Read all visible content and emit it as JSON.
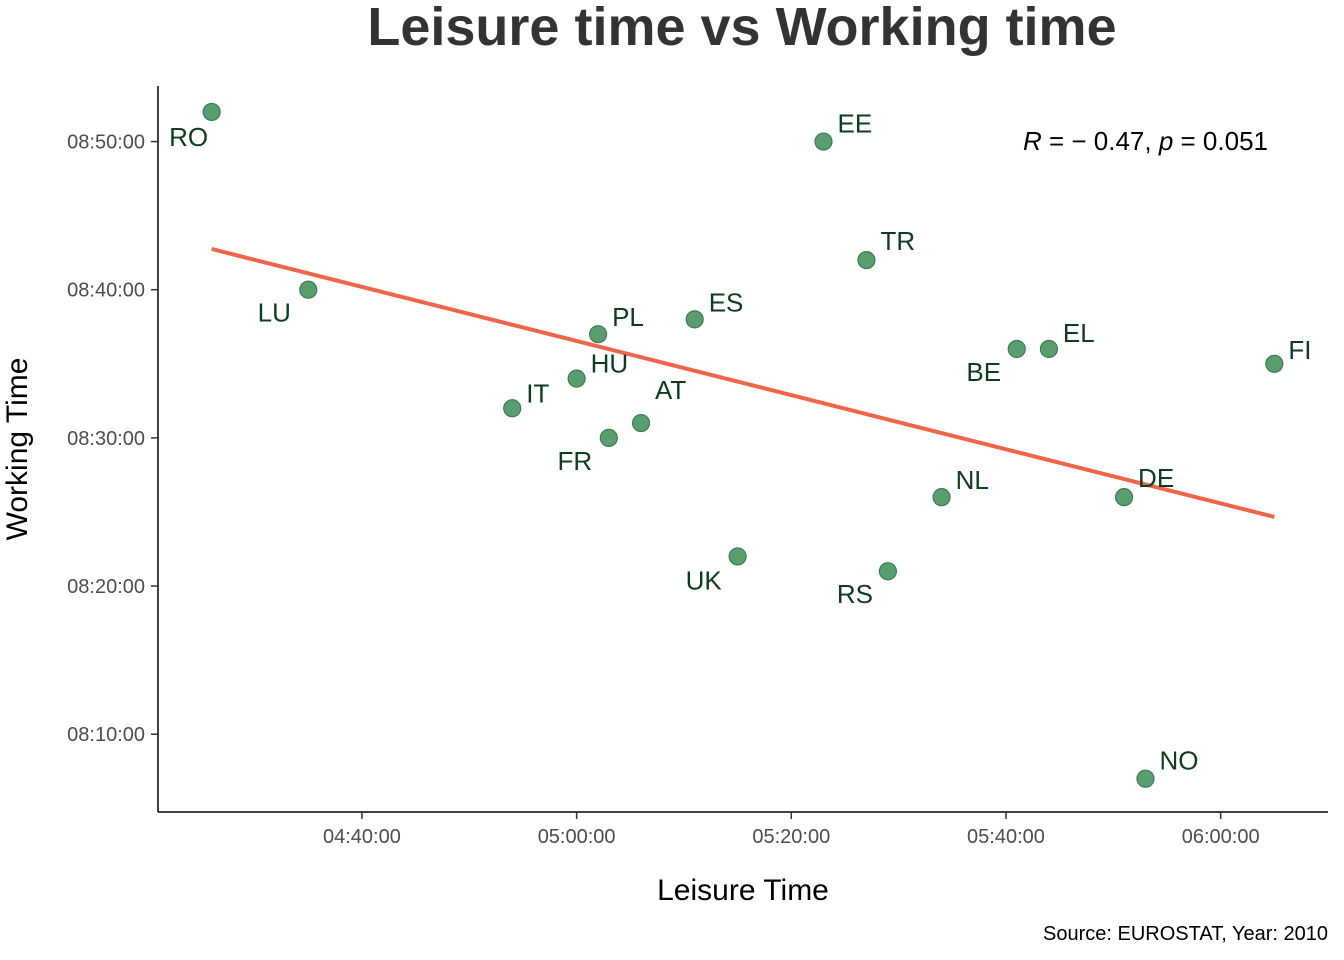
{
  "chart_data": {
    "type": "scatter",
    "title": "Leisure time vs Working time",
    "xlabel": "Leisure Time",
    "ylabel": "Working Time",
    "caption": "Source: EUROSTAT, Year: 2010",
    "annotation": {
      "r_symbol": "R",
      "r_value": " = − 0.47, ",
      "p_symbol": "p",
      "p_value": " = 0.051"
    },
    "x_ticks": [
      "04:40:00",
      "05:00:00",
      "05:20:00",
      "05:40:00",
      "06:00:00"
    ],
    "y_ticks": [
      "08:10:00",
      "08:20:00",
      "08:30:00",
      "08:40:00",
      "08:50:00"
    ],
    "xlim": [
      "04:21:00",
      "06:10:00"
    ],
    "ylim": [
      "08:04:45",
      "08:53:45"
    ],
    "points": [
      {
        "label": "RO",
        "x": "04:26:00",
        "y": "08:52:00"
      },
      {
        "label": "LU",
        "x": "04:35:00",
        "y": "08:40:00"
      },
      {
        "label": "IT",
        "x": "04:54:00",
        "y": "08:32:00"
      },
      {
        "label": "HU",
        "x": "05:00:00",
        "y": "08:34:00"
      },
      {
        "label": "PL",
        "x": "05:02:00",
        "y": "08:37:00"
      },
      {
        "label": "FR",
        "x": "05:03:00",
        "y": "08:30:00"
      },
      {
        "label": "AT",
        "x": "05:06:00",
        "y": "08:31:00"
      },
      {
        "label": "ES",
        "x": "05:11:00",
        "y": "08:38:00"
      },
      {
        "label": "UK",
        "x": "05:15:00",
        "y": "08:22:00"
      },
      {
        "label": "EE",
        "x": "05:23:00",
        "y": "08:50:00"
      },
      {
        "label": "TR",
        "x": "05:27:00",
        "y": "08:42:00"
      },
      {
        "label": "RS",
        "x": "05:29:00",
        "y": "08:21:00"
      },
      {
        "label": "NL",
        "x": "05:34:00",
        "y": "08:26:00"
      },
      {
        "label": "BE",
        "x": "05:41:00",
        "y": "08:36:00"
      },
      {
        "label": "EL",
        "x": "05:44:00",
        "y": "08:36:00"
      },
      {
        "label": "DE",
        "x": "05:51:00",
        "y": "08:26:00"
      },
      {
        "label": "NO",
        "x": "05:53:00",
        "y": "08:07:00"
      },
      {
        "label": "FI",
        "x": "06:05:00",
        "y": "08:35:00"
      }
    ],
    "regression_line": {
      "x": [
        "04:26:00",
        "06:05:00"
      ],
      "y": [
        "08:42:45",
        "08:24:40"
      ]
    },
    "grid": false,
    "legend": "none",
    "colors": {
      "point_fill": "#5a9e6f",
      "point_stroke": "#3d7a52",
      "label": "#0d3d1f",
      "regression": "#f0654a"
    }
  }
}
